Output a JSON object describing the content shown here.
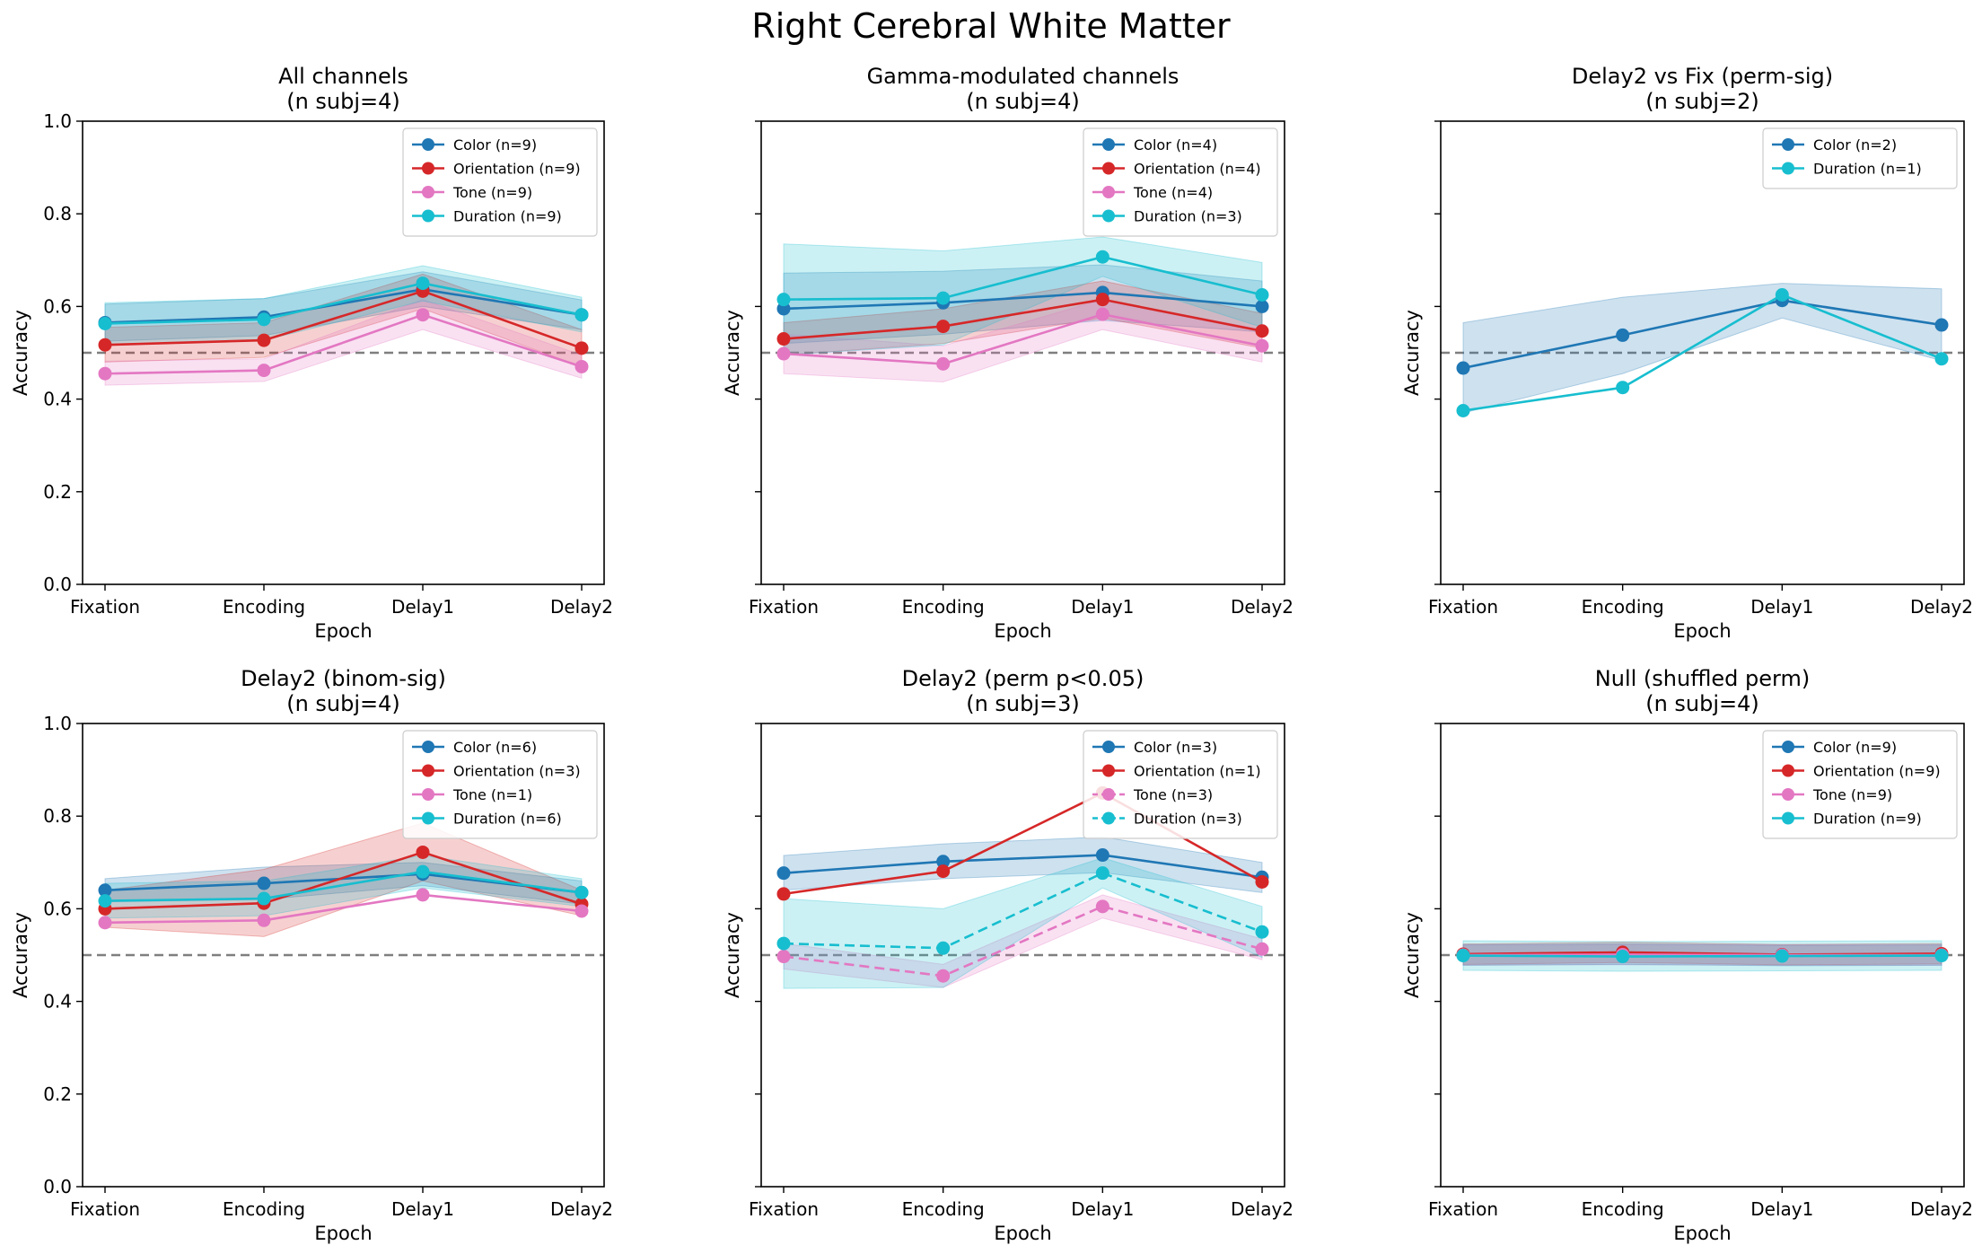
{
  "figure": {
    "title": "Right Cerebral White Matter"
  },
  "colors": {
    "Color": "#1f77b4",
    "Orientation": "#d62728",
    "Tone": "#e377c2",
    "Duration": "#17becf",
    "chance": "#7f7f7f"
  },
  "chart_data": [
    {
      "type": "line",
      "title": "All channels",
      "subtitle": "(n subj=4)",
      "xlabel": "Epoch",
      "ylabel": "Accuracy",
      "categories": [
        "Fixation",
        "Encoding",
        "Delay1",
        "Delay2"
      ],
      "ylim": [
        0,
        1
      ],
      "yticks": [
        "0.0",
        "0.2",
        "0.4",
        "0.6",
        "0.8",
        "1.0"
      ],
      "show_yticklabels": true,
      "show_ylabel": true,
      "show_xlabel": true,
      "chance_level": 0.5,
      "legend_position": "upper right",
      "series": [
        {
          "name": "Color (n=9)",
          "key": "Color",
          "dashed": false,
          "values": [
            0.565,
            0.577,
            0.637,
            0.582
          ],
          "band": [
            [
              0.525,
              0.605
            ],
            [
              0.537,
              0.617
            ],
            [
              0.6,
              0.675
            ],
            [
              0.55,
              0.614
            ]
          ]
        },
        {
          "name": "Orientation (n=9)",
          "key": "Orientation",
          "dashed": false,
          "values": [
            0.517,
            0.527,
            0.633,
            0.51
          ],
          "band": [
            [
              0.48,
              0.555
            ],
            [
              0.49,
              0.565
            ],
            [
              0.595,
              0.67
            ],
            [
              0.47,
              0.55
            ]
          ]
        },
        {
          "name": "Tone (n=9)",
          "key": "Tone",
          "dashed": false,
          "values": [
            0.455,
            0.462,
            0.582,
            0.47
          ],
          "band": [
            [
              0.43,
              0.482
            ],
            [
              0.438,
              0.487
            ],
            [
              0.55,
              0.615
            ],
            [
              0.445,
              0.495
            ]
          ]
        },
        {
          "name": "Duration (n=9)",
          "key": "Duration",
          "dashed": false,
          "values": [
            0.563,
            0.572,
            0.65,
            0.582
          ],
          "band": [
            [
              0.518,
              0.608
            ],
            [
              0.527,
              0.617
            ],
            [
              0.612,
              0.688
            ],
            [
              0.545,
              0.62
            ]
          ]
        }
      ]
    },
    {
      "type": "line",
      "title": "Gamma-modulated channels",
      "subtitle": "(n subj=4)",
      "xlabel": "Epoch",
      "ylabel": "Accuracy",
      "categories": [
        "Fixation",
        "Encoding",
        "Delay1",
        "Delay2"
      ],
      "ylim": [
        0,
        1
      ],
      "yticks": [
        "0.0",
        "0.2",
        "0.4",
        "0.6",
        "0.8",
        "1.0"
      ],
      "show_yticklabels": false,
      "show_ylabel": true,
      "show_xlabel": true,
      "chance_level": 0.5,
      "legend_position": "upper right",
      "series": [
        {
          "name": "Color (n=4)",
          "key": "Color",
          "dashed": false,
          "values": [
            0.595,
            0.608,
            0.63,
            0.6
          ],
          "band": [
            [
              0.52,
              0.672
            ],
            [
              0.54,
              0.676
            ],
            [
              0.57,
              0.69
            ],
            [
              0.545,
              0.655
            ]
          ]
        },
        {
          "name": "Orientation (n=4)",
          "key": "Orientation",
          "dashed": false,
          "values": [
            0.53,
            0.557,
            0.615,
            0.547
          ],
          "band": [
            [
              0.495,
              0.565
            ],
            [
              0.52,
              0.595
            ],
            [
              0.575,
              0.655
            ],
            [
              0.51,
              0.585
            ]
          ]
        },
        {
          "name": "Tone (n=4)",
          "key": "Tone",
          "dashed": false,
          "values": [
            0.498,
            0.476,
            0.583,
            0.515
          ],
          "band": [
            [
              0.455,
              0.54
            ],
            [
              0.437,
              0.515
            ],
            [
              0.55,
              0.615
            ],
            [
              0.48,
              0.55
            ]
          ]
        },
        {
          "name": "Duration (n=3)",
          "key": "Duration",
          "dashed": false,
          "values": [
            0.615,
            0.618,
            0.707,
            0.625
          ],
          "band": [
            [
              0.495,
              0.735
            ],
            [
              0.517,
              0.72
            ],
            [
              0.665,
              0.75
            ],
            [
              0.555,
              0.695
            ]
          ]
        }
      ]
    },
    {
      "type": "line",
      "title": "Delay2 vs Fix (perm-sig)",
      "subtitle": "(n subj=2)",
      "xlabel": "Epoch",
      "ylabel": "Accuracy",
      "categories": [
        "Fixation",
        "Encoding",
        "Delay1",
        "Delay2"
      ],
      "ylim": [
        0,
        1
      ],
      "yticks": [
        "0.0",
        "0.2",
        "0.4",
        "0.6",
        "0.8",
        "1.0"
      ],
      "show_yticklabels": false,
      "show_ylabel": true,
      "show_xlabel": true,
      "chance_level": 0.5,
      "legend_position": "upper right",
      "series": [
        {
          "name": "Color (n=2)",
          "key": "Color",
          "dashed": false,
          "values": [
            0.467,
            0.538,
            0.613,
            0.56
          ],
          "band": [
            [
              0.37,
              0.565
            ],
            [
              0.455,
              0.62
            ],
            [
              0.575,
              0.65
            ],
            [
              0.483,
              0.638
            ]
          ]
        },
        {
          "name": "Duration (n=1)",
          "key": "Duration",
          "dashed": false,
          "values": [
            0.375,
            0.425,
            0.625,
            0.487
          ],
          "band": null
        }
      ]
    },
    {
      "type": "line",
      "title": "Delay2 (binom-sig)",
      "subtitle": "(n subj=4)",
      "xlabel": "Epoch",
      "ylabel": "Accuracy",
      "categories": [
        "Fixation",
        "Encoding",
        "Delay1",
        "Delay2"
      ],
      "ylim": [
        0,
        1
      ],
      "yticks": [
        "0.0",
        "0.2",
        "0.4",
        "0.6",
        "0.8",
        "1.0"
      ],
      "show_yticklabels": true,
      "show_ylabel": true,
      "show_xlabel": true,
      "chance_level": 0.5,
      "legend_position": "upper right",
      "series": [
        {
          "name": "Color (n=6)",
          "key": "Color",
          "dashed": false,
          "values": [
            0.64,
            0.655,
            0.675,
            0.635
          ],
          "band": [
            [
              0.615,
              0.665
            ],
            [
              0.62,
              0.69
            ],
            [
              0.65,
              0.7
            ],
            [
              0.61,
              0.66
            ]
          ]
        },
        {
          "name": "Orientation (n=3)",
          "key": "Orientation",
          "dashed": false,
          "values": [
            0.6,
            0.612,
            0.722,
            0.61
          ],
          "band": [
            [
              0.56,
              0.64
            ],
            [
              0.54,
              0.685
            ],
            [
              0.66,
              0.785
            ],
            [
              0.585,
              0.64
            ]
          ]
        },
        {
          "name": "Tone (n=1)",
          "key": "Tone",
          "dashed": false,
          "values": [
            0.57,
            0.575,
            0.63,
            0.595
          ],
          "band": null
        },
        {
          "name": "Duration (n=6)",
          "key": "Duration",
          "dashed": false,
          "values": [
            0.617,
            0.622,
            0.68,
            0.635
          ],
          "band": [
            [
              0.58,
              0.655
            ],
            [
              0.585,
              0.66
            ],
            [
              0.645,
              0.715
            ],
            [
              0.605,
              0.665
            ]
          ]
        }
      ]
    },
    {
      "type": "line",
      "title": "Delay2 (perm p<0.05)",
      "subtitle": "(n subj=3)",
      "xlabel": "Epoch",
      "ylabel": "Accuracy",
      "categories": [
        "Fixation",
        "Encoding",
        "Delay1",
        "Delay2"
      ],
      "ylim": [
        0,
        1
      ],
      "yticks": [
        "0.0",
        "0.2",
        "0.4",
        "0.6",
        "0.8",
        "1.0"
      ],
      "show_yticklabels": false,
      "show_ylabel": true,
      "show_xlabel": true,
      "chance_level": 0.5,
      "legend_position": "upper right",
      "series": [
        {
          "name": "Color (n=3)",
          "key": "Color",
          "dashed": false,
          "values": [
            0.677,
            0.702,
            0.716,
            0.668
          ],
          "band": [
            [
              0.64,
              0.715
            ],
            [
              0.665,
              0.74
            ],
            [
              0.678,
              0.755
            ],
            [
              0.635,
              0.7
            ]
          ]
        },
        {
          "name": "Orientation (n=1)",
          "key": "Orientation",
          "dashed": false,
          "values": [
            0.632,
            0.681,
            0.85,
            0.658
          ],
          "band": null
        },
        {
          "name": "Tone (n=3)",
          "key": "Tone",
          "dashed": true,
          "values": [
            0.497,
            0.455,
            0.605,
            0.513
          ],
          "band": [
            [
              0.47,
              0.525
            ],
            [
              0.43,
              0.48
            ],
            [
              0.58,
              0.63
            ],
            [
              0.49,
              0.535
            ]
          ]
        },
        {
          "name": "Duration (n=3)",
          "key": "Duration",
          "dashed": true,
          "values": [
            0.525,
            0.515,
            0.677,
            0.55
          ],
          "band": [
            [
              0.428,
              0.622
            ],
            [
              0.43,
              0.6
            ],
            [
              0.645,
              0.71
            ],
            [
              0.495,
              0.605
            ]
          ]
        }
      ]
    },
    {
      "type": "line",
      "title": "Null (shuffled perm)",
      "subtitle": "(n subj=4)",
      "xlabel": "Epoch",
      "ylabel": "Accuracy",
      "categories": [
        "Fixation",
        "Encoding",
        "Delay1",
        "Delay2"
      ],
      "ylim": [
        0,
        1
      ],
      "yticks": [
        "0.0",
        "0.2",
        "0.4",
        "0.6",
        "0.8",
        "1.0"
      ],
      "show_yticklabels": false,
      "show_ylabel": true,
      "show_xlabel": true,
      "chance_level": 0.5,
      "legend_position": "upper right",
      "series": [
        {
          "name": "Color (n=9)",
          "key": "Color",
          "dashed": false,
          "values": [
            0.5,
            0.502,
            0.499,
            0.5
          ],
          "band": [
            [
              0.478,
              0.522
            ],
            [
              0.48,
              0.524
            ],
            [
              0.477,
              0.521
            ],
            [
              0.478,
              0.522
            ]
          ]
        },
        {
          "name": "Orientation (n=9)",
          "key": "Orientation",
          "dashed": false,
          "values": [
            0.502,
            0.506,
            0.501,
            0.503
          ],
          "band": [
            [
              0.48,
              0.524
            ],
            [
              0.484,
              0.528
            ],
            [
              0.479,
              0.523
            ],
            [
              0.481,
              0.525
            ]
          ]
        },
        {
          "name": "Tone (n=9)",
          "key": "Tone",
          "dashed": false,
          "values": [
            0.5,
            0.501,
            0.5,
            0.5
          ],
          "band": [
            [
              0.478,
              0.522
            ],
            [
              0.479,
              0.523
            ],
            [
              0.478,
              0.522
            ],
            [
              0.478,
              0.522
            ]
          ]
        },
        {
          "name": "Duration (n=9)",
          "key": "Duration",
          "dashed": false,
          "values": [
            0.499,
            0.497,
            0.498,
            0.499
          ],
          "band": [
            [
              0.467,
              0.531
            ],
            [
              0.465,
              0.529
            ],
            [
              0.466,
              0.53
            ],
            [
              0.467,
              0.531
            ]
          ]
        }
      ]
    }
  ]
}
